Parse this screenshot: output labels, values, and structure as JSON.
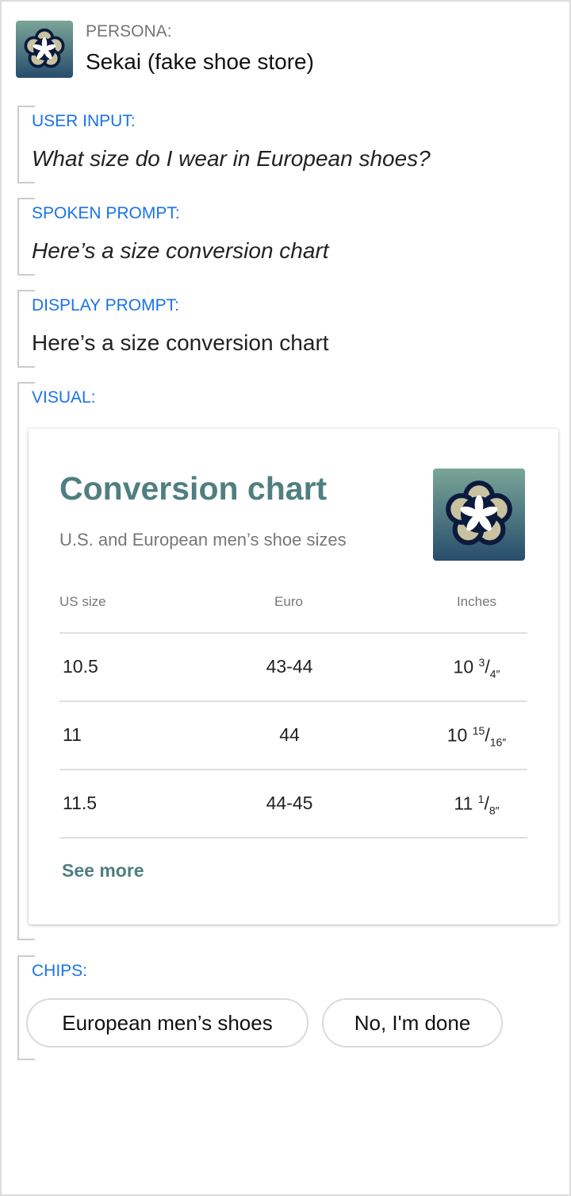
{
  "persona": {
    "label": "PERSONA:",
    "name": "Sekai (fake shoe store)",
    "icon": "sekai-flower-logo"
  },
  "sections": {
    "user_input": {
      "label": "USER INPUT:",
      "text": "What size do I wear in European shoes?"
    },
    "spoken_prompt": {
      "label": "SPOKEN PROMPT:",
      "text": "Here’s a size conversion chart"
    },
    "display_prompt": {
      "label": "DISPLAY PROMPT:",
      "text": "Here’s a size conversion chart"
    },
    "visual": {
      "label": "VISUAL:"
    },
    "chips": {
      "label": "CHIPS:"
    }
  },
  "card": {
    "title": "Conversion chart",
    "subtitle": "U.S. and European men’s shoe sizes",
    "headers": [
      "US size",
      "Euro",
      "Inches"
    ],
    "rows": [
      {
        "us": "10.5",
        "euro": "43-44",
        "inch_whole": "10",
        "inch_num": "3",
        "inch_den": "4″"
      },
      {
        "us": "11",
        "euro": "44",
        "inch_whole": "10",
        "inch_num": "15",
        "inch_den": "16″"
      },
      {
        "us": "11.5",
        "euro": "44-45",
        "inch_whole": "11",
        "inch_num": "1",
        "inch_den": "8″"
      }
    ],
    "see_more": "See more"
  },
  "chips": [
    "European men’s shoes",
    "No, I'm done"
  ],
  "colors": {
    "accent_blue": "#1a73e8",
    "brand_teal": "#4f7f80"
  }
}
